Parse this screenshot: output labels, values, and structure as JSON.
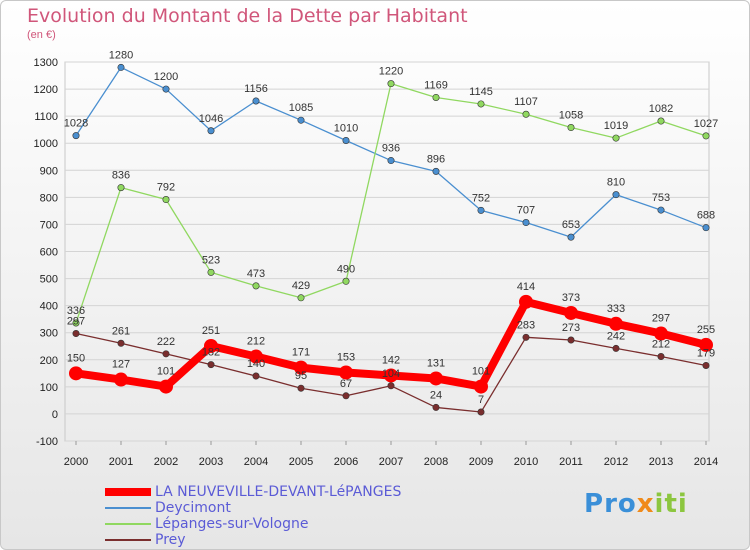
{
  "title": "Evolution du Montant de la Dette par Habitant",
  "subtitle": "(en €)",
  "logo": "Proxiti",
  "chart_data": {
    "type": "line",
    "title": "Evolution du Montant de la Dette par Habitant",
    "ylabel": "(en €)",
    "xlabel": "",
    "x": [
      "2000",
      "2001",
      "2002",
      "2003",
      "2004",
      "2005",
      "2006",
      "2007",
      "2008",
      "2009",
      "2010",
      "2011",
      "2012",
      "2013",
      "2014"
    ],
    "ylim": [
      -100,
      1300
    ],
    "yticks": [
      "-100",
      "0",
      "100",
      "200",
      "300",
      "400",
      "500",
      "600",
      "700",
      "800",
      "900",
      "1000",
      "1100",
      "1200",
      "1300"
    ],
    "grid": "horizontal",
    "legend_position": "bottom-left",
    "series": [
      {
        "name": "LA NEUVEVILLE-DEVANT-LéPANGES",
        "color": "#ff0000",
        "values": [
          150,
          127,
          101,
          251,
          212,
          171,
          153,
          142,
          131,
          101,
          414,
          373,
          333,
          297,
          255
        ]
      },
      {
        "name": "Deycimont",
        "color": "#4a8fd0",
        "values": [
          1028,
          1280,
          1200,
          1046,
          1156,
          1085,
          1010,
          936,
          896,
          752,
          707,
          653,
          810,
          753,
          688
        ]
      },
      {
        "name": "Lépanges-sur-Vologne",
        "color": "#90d860",
        "values": [
          336,
          836,
          792,
          523,
          473,
          429,
          490,
          1220,
          1169,
          1145,
          1107,
          1058,
          1019,
          1082,
          1027
        ]
      },
      {
        "name": "Prey",
        "color": "#7a2e2e",
        "values": [
          297,
          261,
          222,
          182,
          140,
          95,
          67,
          104,
          24,
          7,
          283,
          273,
          242,
          212,
          179
        ]
      }
    ]
  }
}
